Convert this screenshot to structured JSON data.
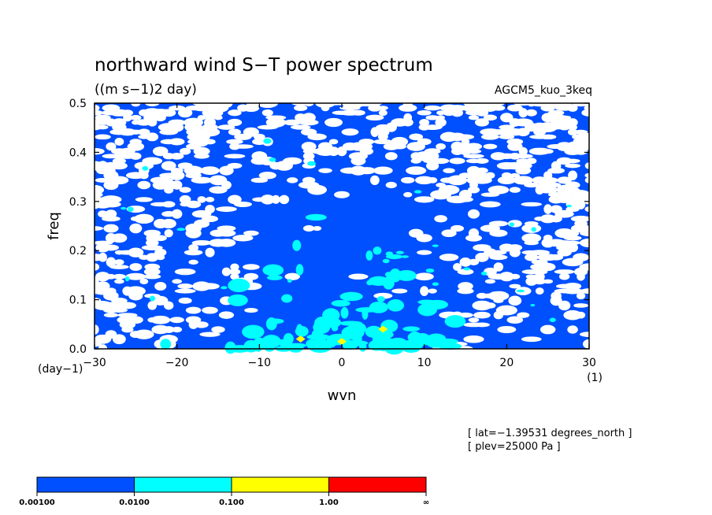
{
  "chart_data": {
    "type": "heatmap",
    "title": "northward wind S−T power spectrum",
    "units": "((m s−1)2 day)",
    "experiment": "AGCM5_kuo_3keq",
    "xlabel": "wvn",
    "ylabel": "freq",
    "x_unit": "(1)",
    "y_unit": "(day−1)",
    "xlim": [
      -30,
      30
    ],
    "ylim": [
      0,
      0.5
    ],
    "x_ticks": [
      -30,
      -20,
      -10,
      0,
      10,
      20,
      30
    ],
    "x_tick_labels": [
      "−30",
      "−20",
      "−10",
      "0",
      "10",
      "20",
      "30"
    ],
    "y_ticks": [
      0,
      0.1,
      0.2,
      0.3,
      0.4,
      0.5
    ],
    "y_tick_labels": [
      "0.0",
      "0.1",
      "0.2",
      "0.3",
      "0.4",
      "0.5"
    ],
    "contour_levels": [
      0.001,
      0.01,
      0.1,
      1.0
    ],
    "colorbar": {
      "labels": [
        "0.00100",
        "0.0100",
        "0.100",
        "1.00",
        "∞"
      ],
      "colors": [
        "#0050ff",
        "#00ffff",
        "#ffff00",
        "#ff0000"
      ]
    },
    "annotations": [
      "[ lat=−1.39531 degrees_north ]",
      "[ plev=25000 Pa ]"
    ],
    "features": [
      {
        "x": -5,
        "y": 0.02,
        "level": "0.100-1.00"
      },
      {
        "x": 0,
        "y": 0.015,
        "level": "0.100-1.00"
      },
      {
        "x": 5,
        "y": 0.04,
        "level": "0.100-1.00"
      }
    ],
    "grid": false
  }
}
